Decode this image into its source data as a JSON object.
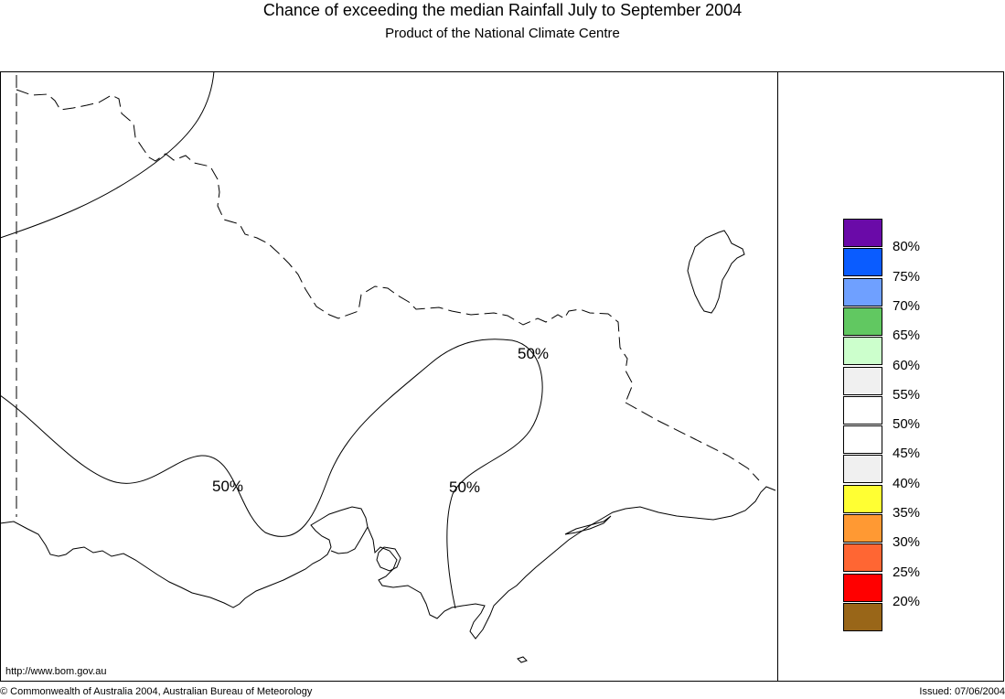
{
  "header": {
    "title": "Chance of exceeding the median Rainfall July to September 2004",
    "subtitle": "Product of the National Climate Centre"
  },
  "map": {
    "contour_labels": [
      "50%",
      "50%",
      "50%"
    ]
  },
  "legend": {
    "colors": [
      "#6a0aa8",
      "#0a5cff",
      "#6fa0ff",
      "#61c861",
      "#ccffcc",
      "#f0f0f0",
      "#ffffff",
      "#ffffff",
      "#f0f0f0",
      "#ffff33",
      "#ff9933",
      "#ff6633",
      "#ff0000",
      "#996618"
    ],
    "labels": [
      "80%",
      "75%",
      "70%",
      "65%",
      "60%",
      "55%",
      "50%",
      "45%",
      "40%",
      "35%",
      "30%",
      "25%",
      "20%"
    ]
  },
  "footer": {
    "url": "http://www.bom.gov.au",
    "copyright": "© Commonwealth of Australia 2004, Australian Bureau of Meteorology",
    "issued": "Issued: 07/06/2004"
  }
}
